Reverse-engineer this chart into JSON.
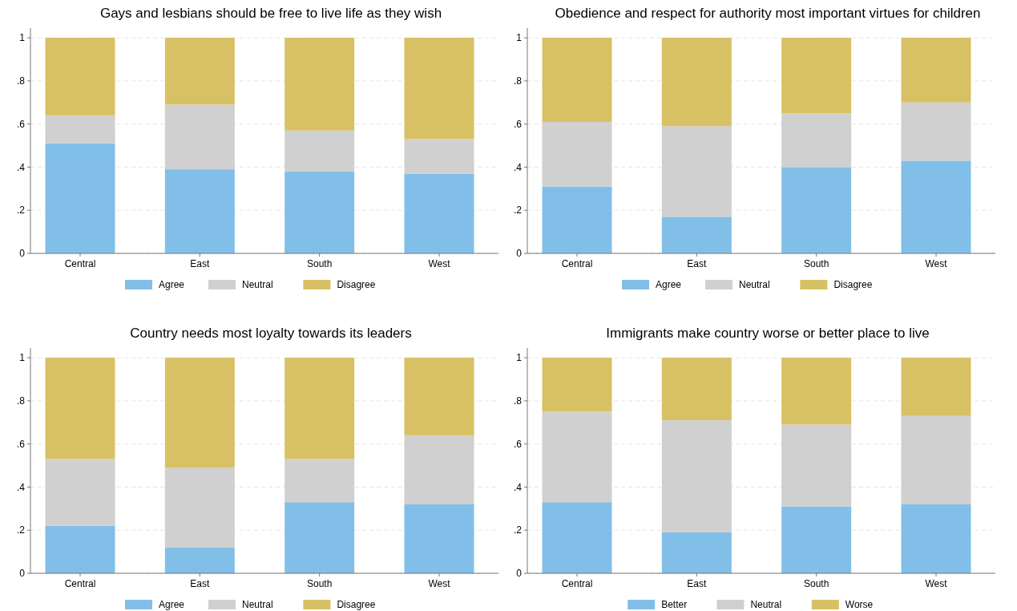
{
  "chart_data": [
    {
      "type": "bar",
      "title": "Gays and lesbians should be free to live life as they wish",
      "categories": [
        "Central",
        "East",
        "South",
        "West"
      ],
      "stacked": true,
      "series": [
        {
          "name": "Agree",
          "color": "#82bfe8",
          "values": [
            0.51,
            0.39,
            0.38,
            0.37
          ]
        },
        {
          "name": "Neutral",
          "color": "#d0d0d0",
          "values": [
            0.13,
            0.3,
            0.19,
            0.16
          ]
        },
        {
          "name": "Disagree",
          "color": "#d8c165",
          "values": [
            0.36,
            0.31,
            0.43,
            0.47
          ]
        }
      ],
      "ylim": [
        0,
        1.045
      ],
      "yticks": [
        {
          "value": 0,
          "label": "0"
        },
        {
          "value": 0.2,
          "label": ".2"
        },
        {
          "value": 0.4,
          "label": ".4"
        },
        {
          "value": 0.6,
          "label": ".6"
        },
        {
          "value": 0.8,
          "label": ".8"
        },
        {
          "value": 1,
          "label": "1"
        }
      ],
      "grid": "y",
      "legend": "bottom"
    },
    {
      "type": "bar",
      "title": "Obedience and respect for authority most important virtues for children",
      "categories": [
        "Central",
        "East",
        "South",
        "West"
      ],
      "stacked": true,
      "series": [
        {
          "name": "Agree",
          "color": "#82bfe8",
          "values": [
            0.31,
            0.17,
            0.4,
            0.43
          ]
        },
        {
          "name": "Neutral",
          "color": "#d0d0d0",
          "values": [
            0.3,
            0.42,
            0.25,
            0.27
          ]
        },
        {
          "name": "Disagree",
          "color": "#d8c165",
          "values": [
            0.39,
            0.41,
            0.35,
            0.3
          ]
        }
      ],
      "ylim": [
        0,
        1.045
      ],
      "yticks": [
        {
          "value": 0,
          "label": "0"
        },
        {
          "value": 0.2,
          "label": ".2"
        },
        {
          "value": 0.4,
          "label": ".4"
        },
        {
          "value": 0.6,
          "label": ".6"
        },
        {
          "value": 0.8,
          "label": ".8"
        },
        {
          "value": 1,
          "label": "1"
        }
      ],
      "grid": "y",
      "legend": "bottom"
    },
    {
      "type": "bar",
      "title": "Country needs most loyalty towards its leaders",
      "categories": [
        "Central",
        "East",
        "South",
        "West"
      ],
      "stacked": true,
      "series": [
        {
          "name": "Agree",
          "color": "#82bfe8",
          "values": [
            0.22,
            0.12,
            0.33,
            0.32
          ]
        },
        {
          "name": "Neutral",
          "color": "#d0d0d0",
          "values": [
            0.31,
            0.37,
            0.2,
            0.32
          ]
        },
        {
          "name": "Disagree",
          "color": "#d8c165",
          "values": [
            0.47,
            0.51,
            0.47,
            0.36
          ]
        }
      ],
      "ylim": [
        0,
        1.045
      ],
      "yticks": [
        {
          "value": 0,
          "label": "0"
        },
        {
          "value": 0.2,
          "label": ".2"
        },
        {
          "value": 0.4,
          "label": ".4"
        },
        {
          "value": 0.6,
          "label": ".6"
        },
        {
          "value": 0.8,
          "label": ".8"
        },
        {
          "value": 1,
          "label": "1"
        }
      ],
      "grid": "y",
      "legend": "bottom"
    },
    {
      "type": "bar",
      "title": "Immigrants make country worse or better place to live",
      "categories": [
        "Central",
        "East",
        "South",
        "West"
      ],
      "stacked": true,
      "series": [
        {
          "name": "Better",
          "color": "#82bfe8",
          "values": [
            0.33,
            0.19,
            0.31,
            0.32
          ]
        },
        {
          "name": "Neutral",
          "color": "#d0d0d0",
          "values": [
            0.42,
            0.52,
            0.38,
            0.41
          ]
        },
        {
          "name": "Worse",
          "color": "#d8c165",
          "values": [
            0.25,
            0.29,
            0.31,
            0.27
          ]
        }
      ],
      "ylim": [
        0,
        1.045
      ],
      "yticks": [
        {
          "value": 0,
          "label": "0"
        },
        {
          "value": 0.2,
          "label": ".2"
        },
        {
          "value": 0.4,
          "label": ".4"
        },
        {
          "value": 0.6,
          "label": ".6"
        },
        {
          "value": 0.8,
          "label": ".8"
        },
        {
          "value": 1,
          "label": "1"
        }
      ],
      "grid": "y",
      "legend": "bottom"
    }
  ]
}
